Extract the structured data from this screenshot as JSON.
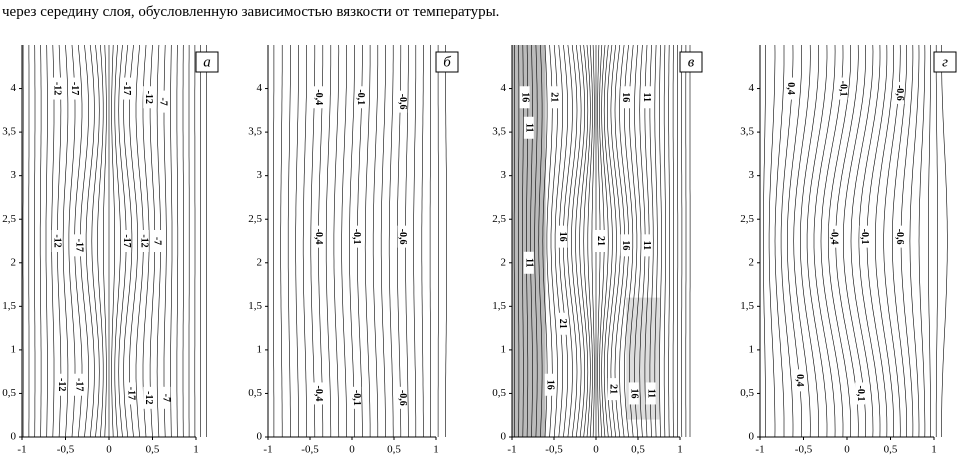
{
  "caption": "через середину слоя, обусловленную зависимостью вязкости от температуры.",
  "panels": [
    {
      "label": "а",
      "xlim": [
        -1,
        1
      ],
      "ylim": [
        0,
        4.5
      ],
      "xticks": [
        -1,
        {
          "value": -0.5,
          "label": "-0,5"
        },
        0,
        {
          "value": 0.5,
          "label": "0,5"
        },
        1
      ],
      "yticks": [
        0,
        {
          "value": 0.5,
          "label": "0,5"
        },
        1,
        {
          "value": 1.5,
          "label": "1,5"
        },
        2,
        {
          "value": 2.5,
          "label": "2,5"
        },
        3,
        {
          "value": 3.5,
          "label": "3,5"
        },
        4
      ],
      "contour_labels": [
        "-12",
        "-17",
        "-17",
        "-12",
        "-7",
        "-12",
        "-17",
        "-17",
        "-12",
        "-7",
        "-12",
        "-17",
        "-17",
        "-12",
        "-7"
      ]
    },
    {
      "label": "б",
      "xlim": [
        -1,
        1
      ],
      "ylim": [
        0,
        4.5
      ],
      "xticks": [
        -1,
        {
          "value": -0.5,
          "label": "-0,5"
        },
        0,
        {
          "value": 0.5,
          "label": "0,5"
        },
        1
      ],
      "yticks": [
        0,
        {
          "value": 0.5,
          "label": "0,5"
        },
        1,
        {
          "value": 1.5,
          "label": "1,5"
        },
        2,
        {
          "value": 2.5,
          "label": "2,5"
        },
        3,
        {
          "value": 3.5,
          "label": "3,5"
        },
        4
      ],
      "contour_labels": [
        "-0,4",
        "-0,1",
        "-0,6",
        "-0,4",
        "-0,1",
        "-0,6",
        "-0,4",
        "-0,1",
        "-0,6"
      ]
    },
    {
      "label": "в",
      "xlim": [
        -1,
        1
      ],
      "ylim": [
        0,
        4.5
      ],
      "xticks": [
        -1,
        {
          "value": -0.5,
          "label": "-0,5"
        },
        0,
        {
          "value": 0.5,
          "label": "0,5"
        },
        1
      ],
      "yticks": [
        0,
        {
          "value": 0.5,
          "label": "0,5"
        },
        1,
        {
          "value": 1.5,
          "label": "1,5"
        },
        2,
        {
          "value": 2.5,
          "label": "2,5"
        },
        3,
        {
          "value": 3.5,
          "label": "3,5"
        },
        4
      ],
      "contour_labels": [
        "16",
        "21",
        "16",
        "11",
        "11",
        "16",
        "21",
        "16",
        "11",
        "11",
        "21",
        "16",
        "21",
        "16",
        "11"
      ]
    },
    {
      "label": "г",
      "xlim": [
        -1,
        1
      ],
      "ylim": [
        0,
        4.5
      ],
      "xticks": [
        -1,
        {
          "value": -0.5,
          "label": "-0,5"
        },
        0,
        {
          "value": 0.5,
          "label": "0,5"
        },
        1
      ],
      "yticks": [
        0,
        {
          "value": 0.5,
          "label": "0,5"
        },
        1,
        {
          "value": 1.5,
          "label": "1,5"
        },
        2,
        {
          "value": 2.5,
          "label": "2,5"
        },
        3,
        {
          "value": 3.5,
          "label": "3,5"
        },
        4
      ],
      "contour_labels": [
        "0,4",
        "-0,1",
        "-0,6",
        "-0,4",
        "-0,1",
        "-0,6",
        "0,4",
        "-0,1"
      ]
    }
  ]
}
